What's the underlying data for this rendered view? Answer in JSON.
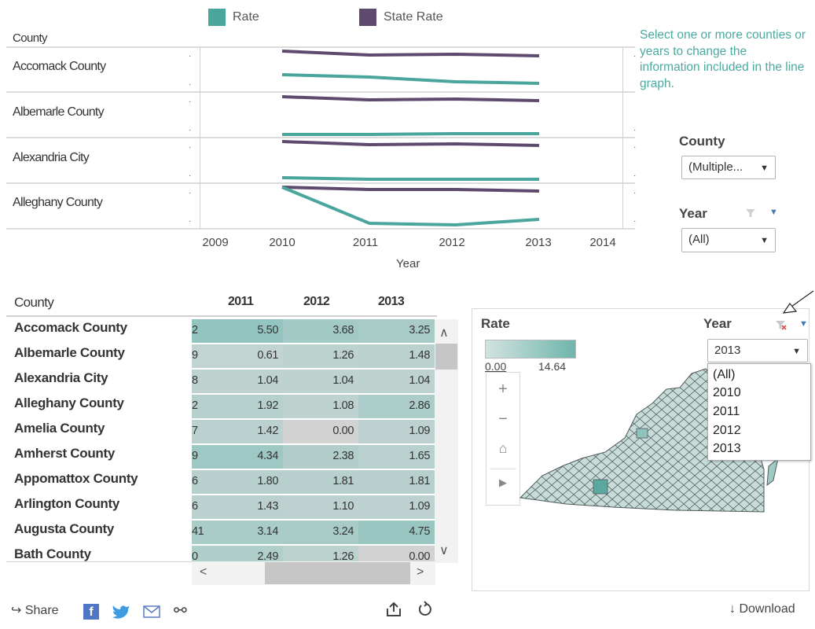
{
  "legend": {
    "rate": {
      "label": "Rate",
      "color": "#4aa59d"
    },
    "state_rate": {
      "label": "State Rate",
      "color": "#5e4a6e"
    }
  },
  "line_chart": {
    "row_header": "County",
    "rows": [
      "Accomack County",
      "Albemarle County",
      "Alexandria City",
      "Alleghany County"
    ],
    "x_ticks": [
      "2009",
      "2010",
      "2011",
      "2012",
      "2013",
      "2014"
    ],
    "x_axis_title": "Year"
  },
  "instructions": "Select one or more counties or years to change the information included in the line graph.",
  "filters": {
    "county_label": "County",
    "county_value": "(Multiple...",
    "year_label": "Year",
    "year_value": "(All)"
  },
  "table": {
    "header": {
      "county": "County",
      "years": [
        "2011",
        "2012",
        "2013"
      ]
    },
    "rows": [
      {
        "name": "Accomack County",
        "partial": "2",
        "v2011": "5.50",
        "v2012": "3.68",
        "v2013": "3.25"
      },
      {
        "name": "Albemarle County",
        "partial": "9",
        "v2011": "0.61",
        "v2012": "1.26",
        "v2013": "1.48"
      },
      {
        "name": "Alexandria City",
        "partial": "8",
        "v2011": "1.04",
        "v2012": "1.04",
        "v2013": "1.04"
      },
      {
        "name": "Alleghany County",
        "partial": "2",
        "v2011": "1.92",
        "v2012": "1.08",
        "v2013": "2.86"
      },
      {
        "name": "Amelia County",
        "partial": "7",
        "v2011": "1.42",
        "v2012": "0.00",
        "v2013": "1.09"
      },
      {
        "name": "Amherst County",
        "partial": "9",
        "v2011": "4.34",
        "v2012": "2.38",
        "v2013": "1.65"
      },
      {
        "name": "Appomattox County",
        "partial": "6",
        "v2011": "1.80",
        "v2012": "1.81",
        "v2013": "1.81"
      },
      {
        "name": "Arlington County",
        "partial": "6",
        "v2011": "1.43",
        "v2012": "1.10",
        "v2013": "1.09"
      },
      {
        "name": "Augusta County",
        "partial": "41",
        "v2011": "3.14",
        "v2012": "3.24",
        "v2013": "4.75"
      },
      {
        "name": "Bath County",
        "partial": "0",
        "v2011": "2.49",
        "v2012": "1.26",
        "v2013": "0.00"
      }
    ]
  },
  "map": {
    "legend_title": "Rate",
    "legend_min": "0.00",
    "legend_max": "14.64",
    "year_label": "Year",
    "year_value": "2013",
    "year_options": [
      "(All)",
      "2010",
      "2011",
      "2012",
      "2013"
    ]
  },
  "footer": {
    "share_label": "Share",
    "download_label": "Download"
  }
}
